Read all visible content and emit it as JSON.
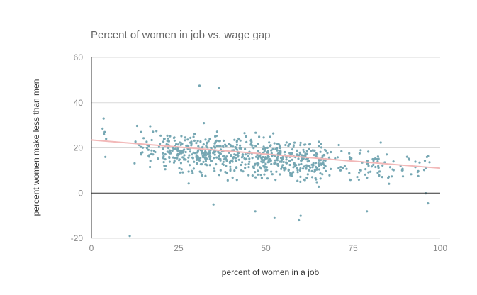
{
  "chart_data": {
    "type": "scatter",
    "title": "Percent of women in job vs. wage gap",
    "xlabel": "percent of women in a job",
    "ylabel": "percent women make less than men",
    "xlim": [
      0,
      100
    ],
    "ylim": [
      -20,
      60
    ],
    "x_ticks": [
      "0",
      "25",
      "50",
      "75",
      "100"
    ],
    "y_ticks": [
      "60",
      "40",
      "20",
      "0",
      "-20"
    ],
    "grid": "horizontal",
    "point_color": "#76a7b3",
    "trendline": {
      "x": [
        0,
        100
      ],
      "y": [
        23.5,
        11.0
      ],
      "color": "#f2b8b8"
    },
    "cloud": {
      "n": 780,
      "x_min": 12,
      "x_max": 97,
      "y_center_at_0": 21,
      "y_center_at_100": 10,
      "spread": 8.5
    },
    "outliers": [
      {
        "x": 3.5,
        "y": 33.0
      },
      {
        "x": 3.2,
        "y": 28.5
      },
      {
        "x": 3.8,
        "y": 27.0
      },
      {
        "x": 3.6,
        "y": 26.0
      },
      {
        "x": 4.0,
        "y": 16.0
      },
      {
        "x": 4.2,
        "y": 24.0
      },
      {
        "x": 11.0,
        "y": -19.0
      },
      {
        "x": 31.0,
        "y": 47.5
      },
      {
        "x": 36.5,
        "y": 46.5
      },
      {
        "x": 59.5,
        "y": -12.0
      },
      {
        "x": 60.0,
        "y": -10.0
      },
      {
        "x": 52.5,
        "y": -11.0
      },
      {
        "x": 35.0,
        "y": -5.0
      },
      {
        "x": 47.0,
        "y": -8.0
      },
      {
        "x": 79.0,
        "y": -8.0
      },
      {
        "x": 96.5,
        "y": -4.5
      }
    ]
  }
}
